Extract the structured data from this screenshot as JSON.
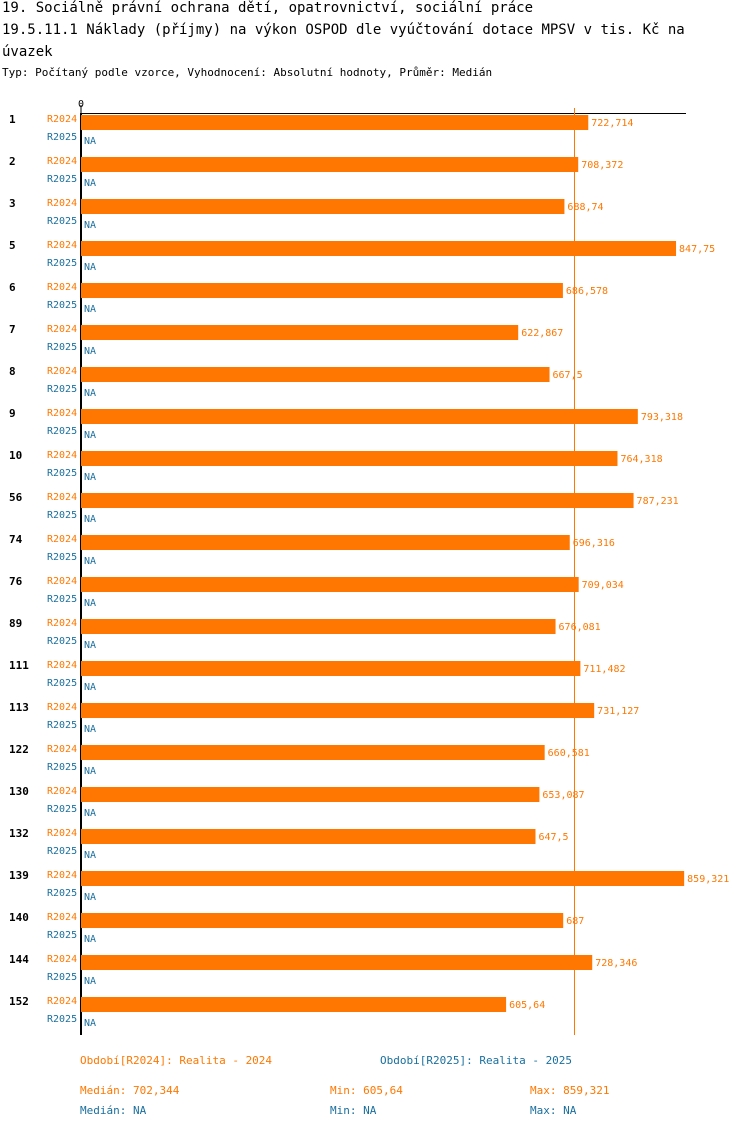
{
  "header": {
    "line1": "19. Sociálně právní ochrana dětí, opatrovnictví, sociální práce",
    "line2": "19.5.11.1 Náklady (příjmy) na výkon OSPOD dle vyúčtování dotace MPSV v tis. Kč na",
    "line3": "úvazek",
    "subtitle": "Typ: Počítaný podle vzorce, Vyhodnocení: Absolutní hodnoty, Průměr: Medián"
  },
  "chart_data": {
    "type": "bar",
    "orientation": "horizontal",
    "axis_zero_label": "0",
    "xlim": [
      0,
      870
    ],
    "median_line": 702.344,
    "categories": [
      "1",
      "2",
      "3",
      "5",
      "6",
      "7",
      "8",
      "9",
      "10",
      "56",
      "74",
      "76",
      "89",
      "111",
      "113",
      "122",
      "130",
      "132",
      "139",
      "140",
      "144",
      "152"
    ],
    "series": [
      {
        "name": "R2024",
        "color": "#ff7700",
        "values": [
          722.714,
          708.372,
          688.74,
          847.75,
          686.578,
          622.867,
          667.5,
          793.318,
          764.318,
          787.231,
          696.316,
          709.034,
          676.081,
          711.482,
          731.127,
          660.581,
          653.087,
          647.5,
          859.321,
          687,
          728.346,
          605.64
        ],
        "labels": [
          "722,714",
          "708,372",
          "688,74",
          "847,75",
          "686,578",
          "622,867",
          "667,5",
          "793,318",
          "764,318",
          "787,231",
          "696,316",
          "709,034",
          "676,081",
          "711,482",
          "731,127",
          "660,581",
          "653,087",
          "647,5",
          "859,321",
          "687",
          "728,346",
          "605,64"
        ]
      },
      {
        "name": "R2025",
        "color": "#1a6f9e",
        "values": [
          null,
          null,
          null,
          null,
          null,
          null,
          null,
          null,
          null,
          null,
          null,
          null,
          null,
          null,
          null,
          null,
          null,
          null,
          null,
          null,
          null,
          null
        ],
        "na_label": "NA"
      }
    ]
  },
  "legend": {
    "period2024": "Období[R2024]: Realita - 2024",
    "period2025": "Období[R2025]: Realita - 2025",
    "median2024": "Medián: 702,344",
    "min2024": "Min: 605,64",
    "max2024": "Max: 859,321",
    "median2025": "Medián: NA",
    "min2025": "Min: NA",
    "max2025": "Max: NA"
  },
  "colors": {
    "r2024": "#ff7700",
    "r2025": "#1a6f9e",
    "axis": "#000000"
  }
}
